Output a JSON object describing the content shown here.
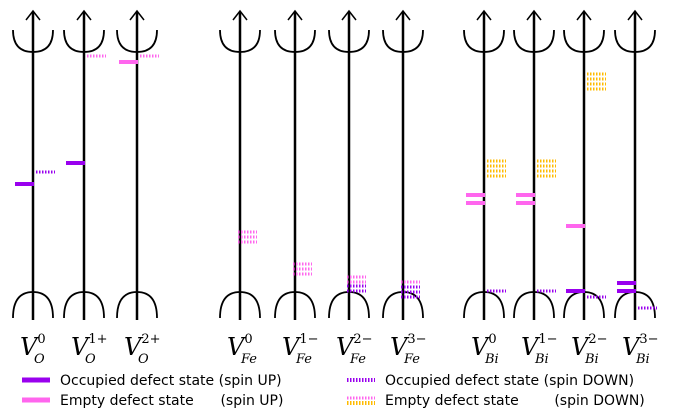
{
  "groups": [
    {
      "columns": [
        {
          "base": "V",
          "sup": "0",
          "sub": "O"
        },
        {
          "base": "V",
          "sup": "1+",
          "sub": "O"
        },
        {
          "base": "V",
          "sup": "2+",
          "sub": "O"
        }
      ]
    },
    {
      "columns": [
        {
          "base": "V",
          "sup": "0",
          "sub": "Fe"
        },
        {
          "base": "V",
          "sup": "1−",
          "sub": "Fe"
        },
        {
          "base": "V",
          "sup": "2−",
          "sub": "Fe"
        },
        {
          "base": "V",
          "sup": "3−",
          "sub": "Fe"
        }
      ]
    },
    {
      "columns": [
        {
          "base": "V",
          "sup": "0",
          "sub": "Bi"
        },
        {
          "base": "V",
          "sup": "1−",
          "sub": "Bi"
        },
        {
          "base": "V",
          "sup": "2−",
          "sub": "Bi"
        },
        {
          "base": "V",
          "sup": "3−",
          "sub": "Bi"
        }
      ]
    }
  ],
  "legend": [
    {
      "text": "Occupied defect state (spin UP)"
    },
    {
      "text": "Empty defect state      (spin UP)"
    },
    {
      "text": "Occupied defect state (spin DOWN)"
    },
    {
      "text": "Empty defect state        (spin DOWN)"
    }
  ]
}
